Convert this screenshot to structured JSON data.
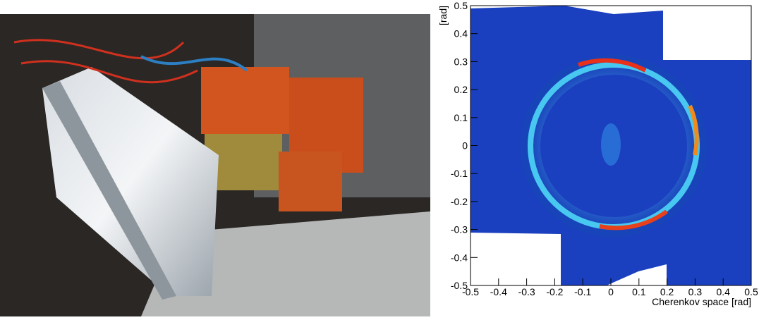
{
  "chart_data": {
    "type": "heatmap",
    "xlabel": "Cherenkov space [rad]",
    "ylabel": "[rad]",
    "xlim": [
      -0.5,
      0.5
    ],
    "ylim": [
      -0.5,
      0.5
    ],
    "xticks": [
      -0.5,
      -0.4,
      -0.3,
      -0.2,
      -0.1,
      0,
      0.1,
      0.2,
      0.3,
      0.4,
      0.5
    ],
    "yticks": [
      -0.5,
      -0.4,
      -0.3,
      -0.2,
      -0.1,
      0,
      0.1,
      0.2,
      0.3,
      0.4,
      0.5
    ]
  }
}
